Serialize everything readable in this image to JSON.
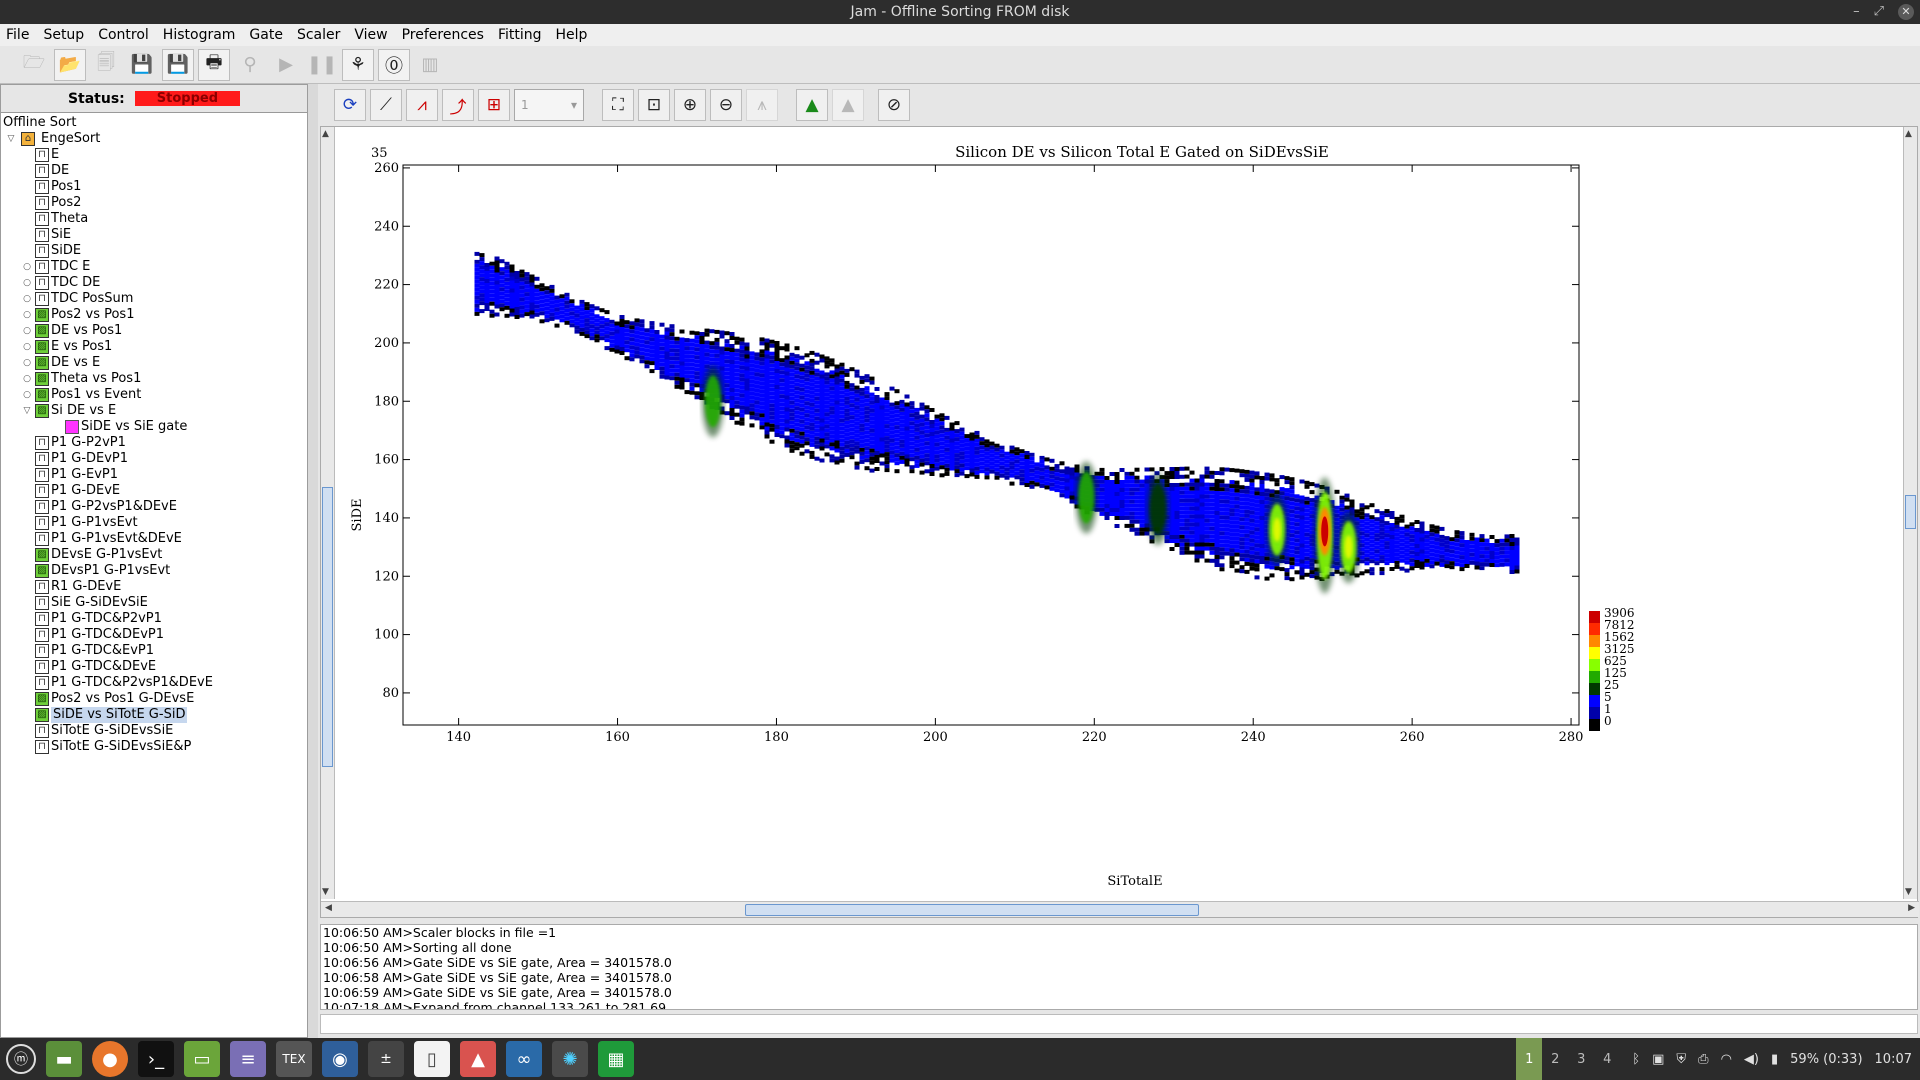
{
  "window": {
    "title": "Jam - Offline Sorting FROM disk",
    "minimize": "–",
    "restore": "⤢",
    "close": "✕"
  },
  "menu": [
    "File",
    "Setup",
    "Control",
    "Histogram",
    "Gate",
    "Scaler",
    "View",
    "Preferences",
    "Fitting",
    "Help"
  ],
  "toolbar": {
    "icons": [
      "open-file-icon",
      "open-selected-icon",
      "reload-icon",
      "save-icon",
      "save-as-icon",
      "print-icon",
      "run-icon",
      "start-icon",
      "pause-icon",
      "sort-icon",
      "zero-icon",
      "parameters-icon"
    ]
  },
  "status": {
    "label": "Status:",
    "value": "Stopped",
    "color": "#ff1a1a"
  },
  "tree": {
    "root": "Offline Sort",
    "group": "EngeSort",
    "items": [
      {
        "label": "E",
        "dim": 1,
        "exp": false
      },
      {
        "label": "DE",
        "dim": 1,
        "exp": false
      },
      {
        "label": "Pos1",
        "dim": 1,
        "exp": false
      },
      {
        "label": "Pos2",
        "dim": 1,
        "exp": false
      },
      {
        "label": "Theta",
        "dim": 1,
        "exp": false
      },
      {
        "label": "SiE",
        "dim": 1,
        "exp": false
      },
      {
        "label": "SiDE",
        "dim": 1,
        "exp": false
      },
      {
        "label": "TDC E",
        "dim": 1,
        "exp": true
      },
      {
        "label": "TDC DE",
        "dim": 1,
        "exp": true
      },
      {
        "label": "TDC PosSum",
        "dim": 1,
        "exp": true
      },
      {
        "label": "Pos2 vs Pos1",
        "dim": 2,
        "exp": true
      },
      {
        "label": "DE vs Pos1",
        "dim": 2,
        "exp": true
      },
      {
        "label": "E vs Pos1",
        "dim": 2,
        "exp": true
      },
      {
        "label": "DE vs E",
        "dim": 2,
        "exp": true
      },
      {
        "label": "Theta vs Pos1",
        "dim": 2,
        "exp": true
      },
      {
        "label": "Pos1 vs Event",
        "dim": 2,
        "exp": true
      },
      {
        "label": "Si DE vs E",
        "dim": 2,
        "exp": true,
        "open": true
      },
      {
        "label": "SiDE vs SiE gate",
        "dim": "gate",
        "exp": false,
        "child": true
      },
      {
        "label": "P1 G-P2vP1",
        "dim": 1,
        "exp": false
      },
      {
        "label": "P1 G-DEvP1",
        "dim": 1,
        "exp": false
      },
      {
        "label": "P1 G-EvP1",
        "dim": 1,
        "exp": false
      },
      {
        "label": "P1 G-DEvE",
        "dim": 1,
        "exp": false
      },
      {
        "label": "P1 G-P2vsP1&DEvE",
        "dim": 1,
        "exp": false
      },
      {
        "label": "P1 G-P1vsEvt",
        "dim": 1,
        "exp": false
      },
      {
        "label": "P1 G-P1vsEvt&DEvE",
        "dim": 1,
        "exp": false
      },
      {
        "label": "DEvsE G-P1vsEvt",
        "dim": 2,
        "exp": false
      },
      {
        "label": "DEvsP1 G-P1vsEvt",
        "dim": 2,
        "exp": false
      },
      {
        "label": "R1 G-DEvE",
        "dim": 1,
        "exp": false
      },
      {
        "label": "SiE G-SiDEvSiE",
        "dim": 1,
        "exp": false
      },
      {
        "label": "P1 G-TDC&P2vP1",
        "dim": 1,
        "exp": false
      },
      {
        "label": "P1 G-TDC&DEvP1",
        "dim": 1,
        "exp": false
      },
      {
        "label": "P1 G-TDC&EvP1",
        "dim": 1,
        "exp": false
      },
      {
        "label": "P1 G-TDC&DEvE",
        "dim": 1,
        "exp": false
      },
      {
        "label": "P1 G-TDC&P2vsP1&DEvE",
        "dim": 1,
        "exp": false
      },
      {
        "label": "Pos2 vs Pos1 G-DEvsE",
        "dim": 2,
        "exp": false
      },
      {
        "label": "SiDE vs SiTotE G-SiD",
        "dim": 2,
        "exp": false,
        "selected": true
      },
      {
        "label": "SiTotE G-SiDEvsSiE",
        "dim": 1,
        "exp": false
      },
      {
        "label": "SiTotE G-SiDEvsSiE&P",
        "dim": 1,
        "exp": false
      }
    ]
  },
  "plot_toolbar": {
    "icons": [
      "refresh-icon",
      "linear-log-icon",
      "auto-scale-icon",
      "overlay-icon",
      "project-icon",
      "zoom-fit-icon",
      "zoom-region-icon",
      "zoom-in-icon",
      "zoom-out-icon",
      "peak-find-icon",
      "gaussian-icon",
      "area-icon",
      "cancel-icon"
    ],
    "combo_value": "1"
  },
  "plot": {
    "number": "35",
    "title": "Silicon DE vs Silicon Total E Gated on SiDEvsSiE",
    "xlabel": "SiTotalE",
    "ylabel": "SiDE"
  },
  "chart_data": {
    "type": "heatmap",
    "title": "Silicon DE vs Silicon Total E Gated on SiDEvsSiE",
    "xlabel": "SiTotalE",
    "ylabel": "SiDE",
    "xlim": [
      133,
      281
    ],
    "ylim": [
      69,
      261
    ],
    "xticks": [
      140,
      160,
      180,
      200,
      220,
      240,
      260,
      280
    ],
    "yticks": [
      80,
      100,
      120,
      140,
      160,
      180,
      200,
      220,
      240,
      260
    ],
    "color_scale": {
      "labels": [
        "3906",
        "7812",
        "1562",
        "3125",
        "625",
        "125",
        "25",
        "5",
        "1",
        "0"
      ],
      "colors": [
        "#cc0000",
        "#ff2a00",
        "#ff8800",
        "#ffff00",
        "#88ff00",
        "#22aa00",
        "#003800",
        "#0000ff",
        "#0000aa",
        "#000000"
      ]
    },
    "band": [
      {
        "x": 143,
        "y": 221
      },
      {
        "x": 150,
        "y": 215
      },
      {
        "x": 160,
        "y": 203
      },
      {
        "x": 170,
        "y": 193
      },
      {
        "x": 180,
        "y": 183
      },
      {
        "x": 190,
        "y": 174
      },
      {
        "x": 200,
        "y": 166
      },
      {
        "x": 210,
        "y": 158
      },
      {
        "x": 220,
        "y": 149
      },
      {
        "x": 230,
        "y": 143
      },
      {
        "x": 240,
        "y": 138
      },
      {
        "x": 250,
        "y": 135
      },
      {
        "x": 260,
        "y": 131
      },
      {
        "x": 270,
        "y": 128
      }
    ],
    "hotspots": [
      {
        "x": 172,
        "y": 180,
        "level": "125"
      },
      {
        "x": 219,
        "y": 147,
        "level": "125"
      },
      {
        "x": 228,
        "y": 143,
        "level": "25"
      },
      {
        "x": 243,
        "y": 136,
        "level": "625"
      },
      {
        "x": 249,
        "y": 134,
        "level": "3906"
      },
      {
        "x": 252,
        "y": 130,
        "level": "625"
      }
    ]
  },
  "log": [
    "10:06:50 AM>Scaler blocks in file =1",
    "10:06:50 AM>Sorting all done",
    "10:06:56 AM>Gate SiDE vs SiE gate, Area = 3401578.0",
    "10:06:58 AM>Gate SiDE vs SiE gate, Area = 3401578.0",
    "10:06:59 AM>Gate SiDE vs SiE gate, Area = 3401578.0",
    "10:07:18 AM>Expand from channel 133,261 to 281,69"
  ],
  "taskbar": {
    "apps": [
      "mint-menu-icon",
      "files-icon",
      "firefox-icon",
      "terminal-icon",
      "folder-icon",
      "text-editor-icon",
      "tex-icon",
      "camera-icon",
      "calculator-icon",
      "document-icon",
      "image-viewer-icon",
      "binoculars-icon",
      "jam-atom-icon",
      "spreadsheet-icon"
    ],
    "workspaces": [
      "1",
      "2",
      "3",
      "4"
    ],
    "battery": "59% (0:33)",
    "clock": "10:07"
  }
}
